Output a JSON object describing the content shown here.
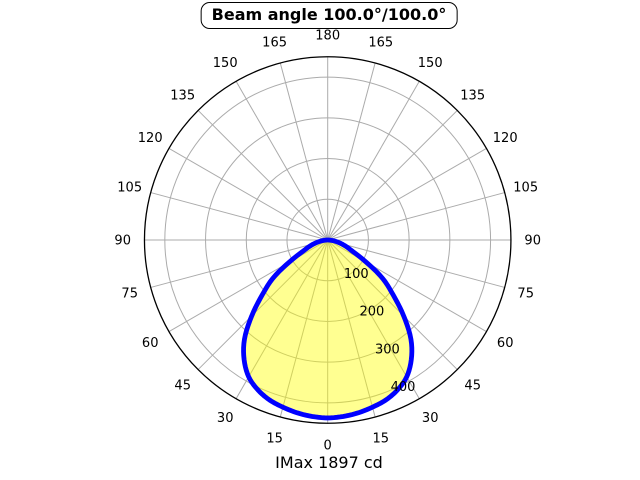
{
  "chart_data": {
    "type": "polar",
    "title": "Beam angle 100.0°/100.0°",
    "footer": "IMax 1897 cd",
    "imax_cd": 1897,
    "beam_angle_c0_deg": 100.0,
    "beam_angle_c90_deg": 100.0,
    "orientation": "0 degrees at bottom, angles increase to 180 at top on both sides, curve mirrored left/right",
    "angle_labels_deg": [
      0,
      15,
      30,
      45,
      60,
      75,
      90,
      105,
      120,
      135,
      150,
      165,
      180
    ],
    "angle_grid_step_deg": 15,
    "r_ticks": [
      100,
      200,
      300,
      400
    ],
    "r_max": 450,
    "r_label_angle_deg": 22.5,
    "grid_on": true,
    "colors": {
      "grid": "#ababab",
      "outline": "#000000",
      "curve": "#0000ff",
      "fill": "rgba(255,255,0,0.43)",
      "labels": "#000000",
      "background": "#ffffff"
    },
    "series": [
      {
        "name": "luminous-intensity-curve",
        "mirrored": true,
        "angles_deg": [
          0,
          5,
          10,
          15,
          20,
          25,
          30,
          35,
          40,
          45,
          50,
          55,
          60,
          65,
          70,
          75,
          80,
          85,
          90
        ],
        "values": [
          437,
          435,
          431,
          425,
          418,
          406,
          388,
          358,
          318,
          264,
          210,
          165,
          110,
          70,
          50,
          34,
          20,
          9,
          0
        ]
      }
    ]
  }
}
